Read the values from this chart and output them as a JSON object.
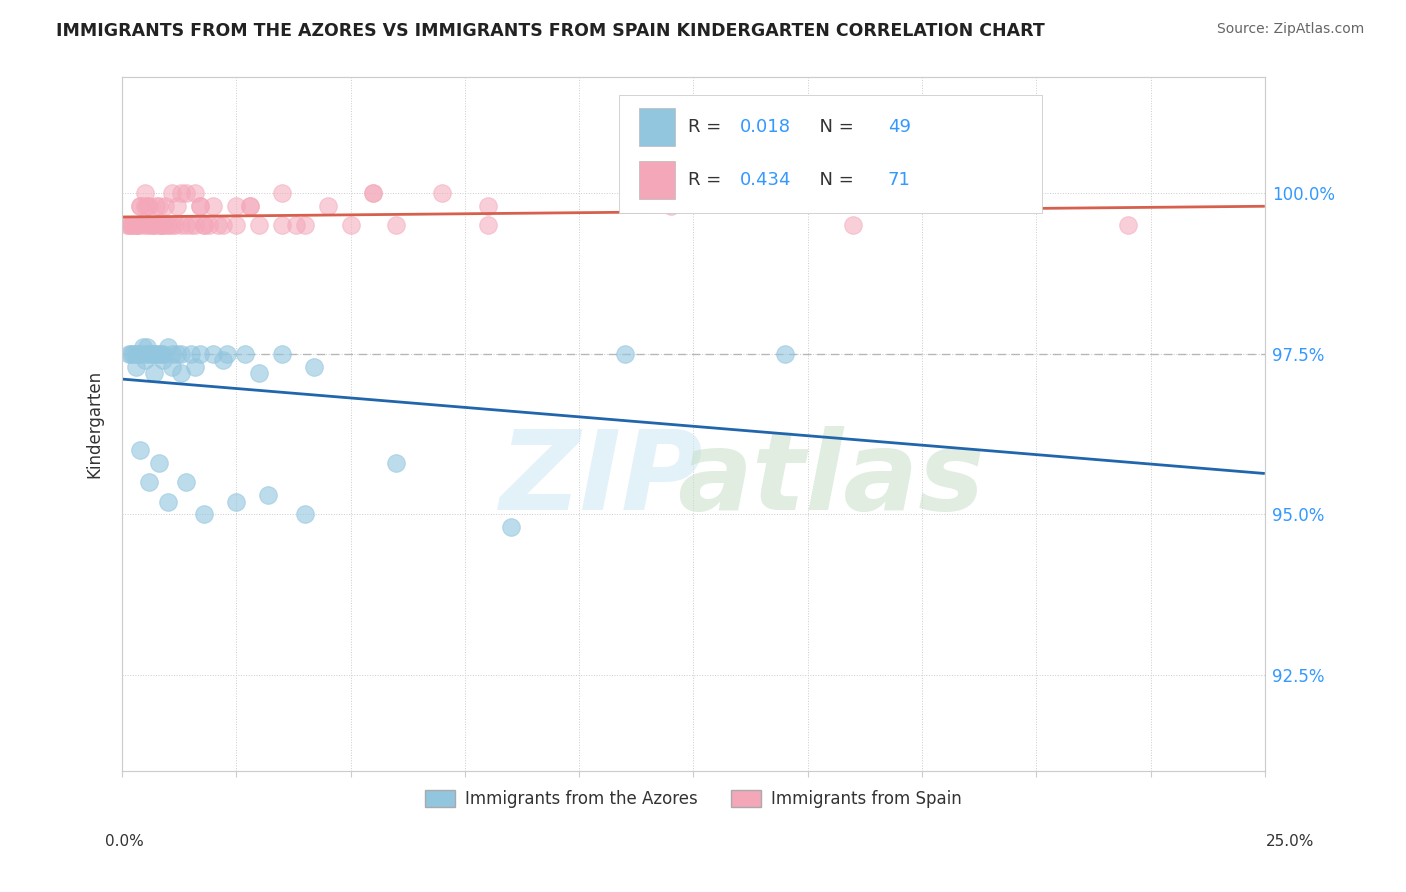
{
  "title": "IMMIGRANTS FROM THE AZORES VS IMMIGRANTS FROM SPAIN KINDERGARTEN CORRELATION CHART",
  "source": "Source: ZipAtlas.com",
  "ylabel": "Kindergarten",
  "color_azores": "#92c5de",
  "color_spain": "#f4a7b9",
  "trend_color_azores": "#2166ac",
  "trend_color_spain": "#d6604d",
  "background_color": "#ffffff",
  "xmin": 0.0,
  "xmax": 25.0,
  "ymin": 91.0,
  "ymax": 101.8,
  "ytick_positions": [
    92.5,
    95.0,
    97.5,
    100.0
  ],
  "dashed_line_y": 97.5,
  "r_azores": 0.018,
  "n_azores": 49,
  "r_spain": 0.434,
  "n_spain": 71,
  "azores_x": [
    0.15,
    0.2,
    0.25,
    0.3,
    0.35,
    0.4,
    0.45,
    0.5,
    0.55,
    0.6,
    0.65,
    0.7,
    0.75,
    0.8,
    0.85,
    0.9,
    1.0,
    1.1,
    1.2,
    1.3,
    1.5,
    1.7,
    2.0,
    2.3,
    2.7,
    3.5,
    0.3,
    0.5,
    0.7,
    0.9,
    1.1,
    1.3,
    1.6,
    2.2,
    3.0,
    4.2,
    0.4,
    0.8,
    1.4,
    2.5,
    4.0,
    6.0,
    8.5,
    11.0,
    14.5,
    0.6,
    1.0,
    1.8,
    3.2
  ],
  "azores_y": [
    97.5,
    97.5,
    97.5,
    97.5,
    97.5,
    97.5,
    97.6,
    97.5,
    97.6,
    97.5,
    97.5,
    97.5,
    97.5,
    97.5,
    97.5,
    97.5,
    97.6,
    97.5,
    97.5,
    97.5,
    97.5,
    97.5,
    97.5,
    97.5,
    97.5,
    97.5,
    97.3,
    97.4,
    97.2,
    97.4,
    97.3,
    97.2,
    97.3,
    97.4,
    97.2,
    97.3,
    96.0,
    95.8,
    95.5,
    95.2,
    95.0,
    95.8,
    94.8,
    97.5,
    97.5,
    95.5,
    95.2,
    95.0,
    95.3
  ],
  "spain_x": [
    0.1,
    0.15,
    0.2,
    0.25,
    0.3,
    0.35,
    0.4,
    0.45,
    0.5,
    0.55,
    0.6,
    0.65,
    0.7,
    0.75,
    0.8,
    0.85,
    0.9,
    0.95,
    1.0,
    1.1,
    1.2,
    1.3,
    1.4,
    1.5,
    1.6,
    1.7,
    1.8,
    1.9,
    2.0,
    2.2,
    2.5,
    2.8,
    3.0,
    3.5,
    4.0,
    4.5,
    5.0,
    6.0,
    7.0,
    8.0,
    0.3,
    0.5,
    0.7,
    0.9,
    1.1,
    1.4,
    1.7,
    2.1,
    2.8,
    3.8,
    5.5,
    0.2,
    0.4,
    0.6,
    0.8,
    1.0,
    1.3,
    1.8,
    2.5,
    3.5,
    5.5,
    8.0,
    12.0,
    16.0,
    18.5,
    22.0,
    0.35,
    0.55,
    0.85,
    1.15,
    1.6
  ],
  "spain_y": [
    99.5,
    99.5,
    99.5,
    99.5,
    99.5,
    99.5,
    99.8,
    99.5,
    100.0,
    99.5,
    99.8,
    99.5,
    99.5,
    99.8,
    99.5,
    99.5,
    99.5,
    99.8,
    99.5,
    99.5,
    99.8,
    99.5,
    100.0,
    99.5,
    99.5,
    99.8,
    99.5,
    99.5,
    99.8,
    99.5,
    99.5,
    99.8,
    99.5,
    100.0,
    99.5,
    99.8,
    99.5,
    99.5,
    100.0,
    99.8,
    99.5,
    99.8,
    99.5,
    99.5,
    100.0,
    99.5,
    99.8,
    99.5,
    99.8,
    99.5,
    100.0,
    99.5,
    99.8,
    99.5,
    99.8,
    99.5,
    100.0,
    99.5,
    99.8,
    99.5,
    100.0,
    99.5,
    99.8,
    99.5,
    100.0,
    99.5,
    99.5,
    99.8,
    99.5,
    99.5,
    100.0
  ]
}
